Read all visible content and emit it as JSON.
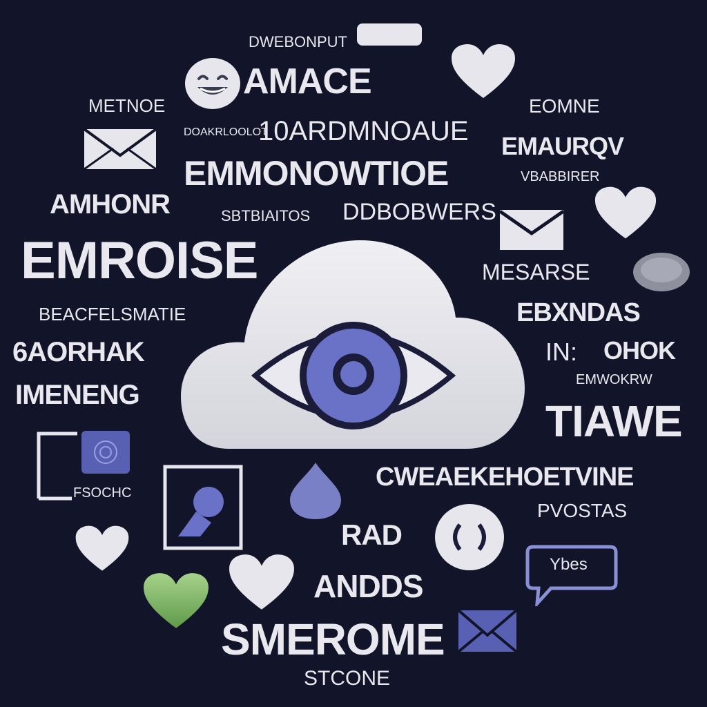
{
  "words": {
    "w_top_small": "DWEBONPUT",
    "w_amace": "AMACE",
    "w_metnoe": "METNOE",
    "w_emme": "EOMNE",
    "w_boxed": "DOAKRLOOLOT",
    "w_wardmno": "10ARDMNOAUE",
    "w_emaurov": "EMAURQV",
    "w_emmonowtioe": "EMMONOWTIOE",
    "w_vbabbirer": "VBABBIRER",
    "w_amhonr": "AMHONR",
    "w_sbtaitos": "SBTBIAITOS",
    "w_dd5bwers": "DDBOBWERS",
    "w_emroise": "EMROISE",
    "w_mesarse": "MESARSE",
    "w_beacfelsmatie": "BEACFELSMATIE",
    "w_ebxndas": "EBXNDAS",
    "w_6aorhak": "6AORHAK",
    "w_in": "IN:",
    "w_ohok": "OHOK",
    "w_emwrdvrw": "EMWOKRW",
    "w_imenengg": "IMENENG",
    "w_tiawe": "TIAWE",
    "w_fgochc": "FSOCHC",
    "w_cwenekehoetvine": "CWEAEKEHOETVINE",
    "w_povstas": "PVOSTAS",
    "w_rad": "RAD",
    "w_andds": "ANDDS",
    "w_speech": "Ybes",
    "w_smerome": "SMEROME",
    "w_stcone": "STCONE"
  },
  "colors": {
    "background": "#12142a",
    "text": "#e8e8ee",
    "cloud": "#e6e6ec",
    "eye_iris": "#6a72c8",
    "eye_outline": "#1a1c3a",
    "heart": "#e6e6ec",
    "heart_green": "#8bc46a",
    "accent_blue": "#5860b4"
  },
  "icons": [
    "cloud-eye-icon",
    "smiley-icon",
    "heart-icon",
    "envelope-icon",
    "chat-bubble-icon",
    "location-pin-icon",
    "person-photo-icon",
    "gallery-icon",
    "eye-circle-icon",
    "coin-icon",
    "green-heart-icon",
    "tablet-icon"
  ]
}
